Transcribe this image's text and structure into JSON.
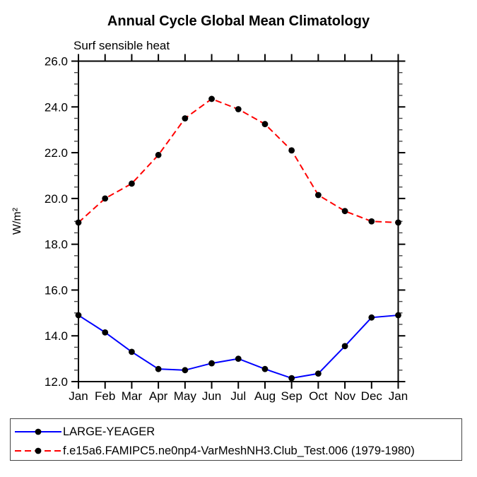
{
  "title": "Annual Cycle Global Mean Climatology",
  "subtitle": "Surf sensible heat",
  "ylabel": "W/m²",
  "colors": {
    "background": "#ffffff",
    "axis": "#000000",
    "minor_tick": "#444444",
    "series_large_yeager": "#0000ff",
    "series_model": "#ff0000",
    "marker": "#000000"
  },
  "chart_data": {
    "type": "line",
    "title": "Annual Cycle Global Mean Climatology",
    "subtitle": "Surf sensible heat",
    "xlabel": "",
    "ylabel": "W/m²",
    "categories": [
      "Jan",
      "Feb",
      "Mar",
      "Apr",
      "May",
      "Jun",
      "Jul",
      "Aug",
      "Sep",
      "Oct",
      "Nov",
      "Dec",
      "Jan"
    ],
    "ylim": [
      12.0,
      26.0
    ],
    "ytick_values": [
      12,
      14,
      16,
      18,
      20,
      22,
      24,
      26
    ],
    "ytick_labels": [
      "12.0",
      "14.0",
      "16.0",
      "18.0",
      "20.0",
      "22.0",
      "24.0",
      "26.0"
    ],
    "ytick_step": 2.0,
    "ytick_minor_step": 0.5,
    "grid": false,
    "legend_position": "bottom",
    "series": [
      {
        "name": "LARGE-YEAGER",
        "color": "#0000ff",
        "line_style": "solid",
        "marker": "circle",
        "marker_color": "#000000",
        "values": [
          14.9,
          14.15,
          13.3,
          12.55,
          12.5,
          12.8,
          13.0,
          12.55,
          12.15,
          12.35,
          13.55,
          14.8,
          14.9
        ]
      },
      {
        "name": "f.e15a6.FAMIPC5.ne0np4-VarMeshNH3.Club_Test.006 (1979-1980)",
        "color": "#ff0000",
        "line_style": "dashed",
        "marker": "circle",
        "marker_color": "#000000",
        "values": [
          18.95,
          20.0,
          20.65,
          21.9,
          23.5,
          24.35,
          23.9,
          23.25,
          22.1,
          20.15,
          19.45,
          19.0,
          18.95
        ]
      }
    ]
  }
}
